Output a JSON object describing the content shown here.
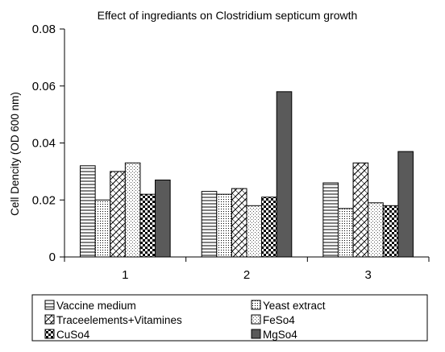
{
  "chart_data": {
    "type": "bar",
    "title": "Effect of ingrediants on Clostridium septicum growth",
    "xlabel": "",
    "ylabel": "Cell Dencity (OD 600 nm)",
    "ylim": [
      0,
      0.08
    ],
    "yticks": [
      "0",
      "0.02",
      "0.04",
      "0.06",
      "0.08"
    ],
    "categories": [
      "1",
      "2",
      "3"
    ],
    "grid": false,
    "legend_position": "bottom",
    "series": [
      {
        "name": "Vaccine medium",
        "values": [
          0.032,
          0.023,
          0.026
        ],
        "pattern": "horizontal-lines",
        "color": "#ffffff"
      },
      {
        "name": "Yeast extract",
        "values": [
          0.02,
          0.022,
          0.017
        ],
        "pattern": "dots",
        "color": "#ffffff"
      },
      {
        "name": "Traceelements+Vitamines",
        "values": [
          0.03,
          0.024,
          0.033
        ],
        "pattern": "diagonal-hatch",
        "color": "#ffffff"
      },
      {
        "name": "FeSo4",
        "values": [
          0.033,
          0.018,
          0.019
        ],
        "pattern": "fine-dots",
        "color": "#ffffff"
      },
      {
        "name": "CuSo4",
        "values": [
          0.022,
          0.021,
          0.018
        ],
        "pattern": "checker",
        "color": "#000000"
      },
      {
        "name": "MgSo4",
        "values": [
          0.027,
          0.058,
          0.037
        ],
        "pattern": "solid",
        "color": "#5a5a5a"
      }
    ]
  }
}
